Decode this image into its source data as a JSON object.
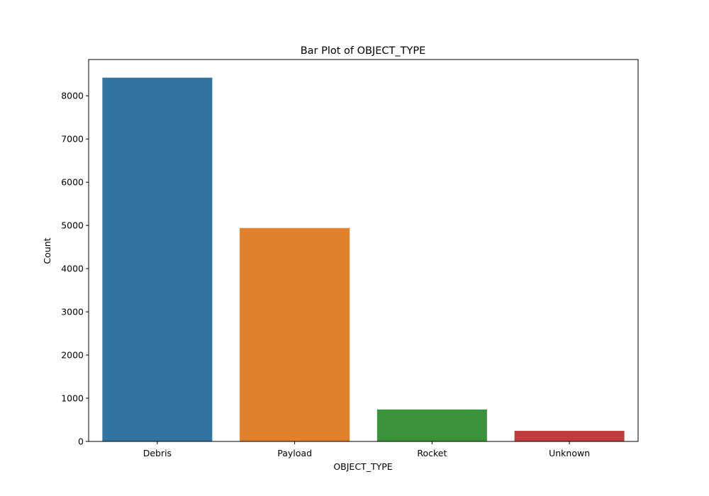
{
  "chart_data": {
    "type": "bar",
    "title": "Bar Plot of OBJECT_TYPE",
    "xlabel": "OBJECT_TYPE",
    "ylabel": "Count",
    "categories": [
      "Debris",
      "Payload",
      "Rocket",
      "Unknown"
    ],
    "values": [
      8420,
      4940,
      740,
      245
    ],
    "colors": [
      "#3274a1",
      "#e1812c",
      "#3a923a",
      "#c03d3e"
    ],
    "ylim": [
      0,
      8840
    ],
    "yticks": [
      0,
      1000,
      2000,
      3000,
      4000,
      5000,
      6000,
      7000,
      8000
    ],
    "grid": false,
    "legend": "none"
  }
}
